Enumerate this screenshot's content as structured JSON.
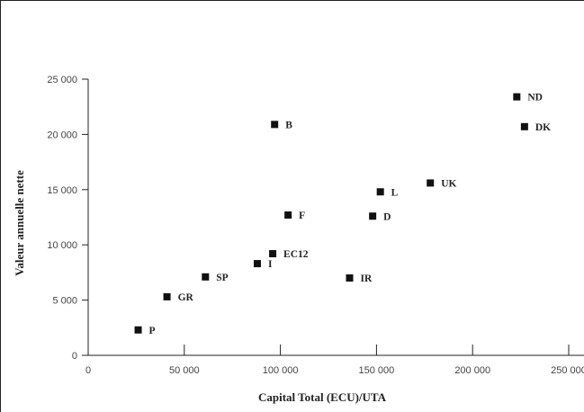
{
  "chart_data": {
    "type": "scatter",
    "title": "",
    "xlabel": "Capital Total (ECU)/UTA",
    "ylabel": "Valeur annuelle nette",
    "xlim": [
      0,
      250000
    ],
    "ylim": [
      0,
      25000
    ],
    "xticks": [
      0,
      50000,
      100000,
      150000,
      200000,
      250000
    ],
    "xtick_labels": [
      "0",
      "50 000",
      "100 000",
      "150 000",
      "200 000",
      "250 000"
    ],
    "yticks": [
      0,
      5000,
      10000,
      15000,
      20000,
      25000
    ],
    "ytick_labels": [
      "0",
      "5 000",
      "10 000",
      "15 000",
      "20 000",
      "25 000"
    ],
    "grid": false,
    "points": [
      {
        "label": "P",
        "x": 26000,
        "y": 2300
      },
      {
        "label": "GR",
        "x": 41000,
        "y": 5300
      },
      {
        "label": "SP",
        "x": 61000,
        "y": 7100
      },
      {
        "label": "I",
        "x": 88000,
        "y": 8300
      },
      {
        "label": "EC12",
        "x": 96000,
        "y": 9200
      },
      {
        "label": "F",
        "x": 104000,
        "y": 12700
      },
      {
        "label": "B",
        "x": 97000,
        "y": 20900
      },
      {
        "label": "IR",
        "x": 136000,
        "y": 7000
      },
      {
        "label": "D",
        "x": 148000,
        "y": 12600
      },
      {
        "label": "L",
        "x": 152000,
        "y": 14800
      },
      {
        "label": "UK",
        "x": 178000,
        "y": 15600
      },
      {
        "label": "ND",
        "x": 223000,
        "y": 23400
      },
      {
        "label": "DK",
        "x": 227000,
        "y": 20700
      }
    ]
  }
}
